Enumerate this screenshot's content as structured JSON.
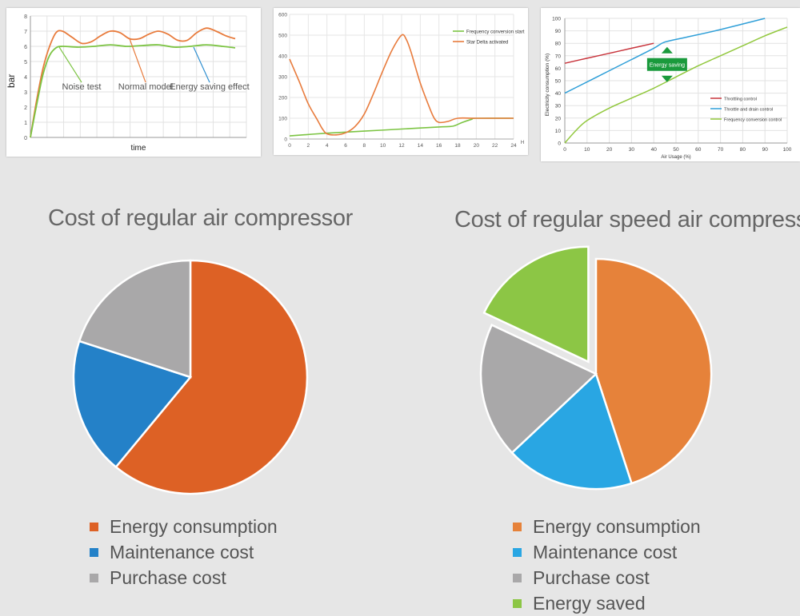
{
  "chart_data": [
    {
      "type": "line",
      "xlabel": "time",
      "ylabel": "bar",
      "ylim": [
        0,
        8
      ],
      "yticks": [
        "0",
        "1",
        "2",
        "3",
        "4",
        "5",
        "6",
        "7",
        "8"
      ],
      "grid": true,
      "series": [
        {
          "key": "orange",
          "color": "#e87b3c",
          "values": [
            [
              0,
              0
            ],
            [
              0.4,
              2.5
            ],
            [
              0.8,
              4.6
            ],
            [
              1.2,
              6.0
            ],
            [
              1.6,
              6.9
            ],
            [
              2.0,
              7.0
            ],
            [
              2.6,
              6.6
            ],
            [
              3.2,
              6.2
            ],
            [
              3.8,
              6.3
            ],
            [
              4.4,
              6.7
            ],
            [
              5.0,
              7.0
            ],
            [
              5.6,
              6.9
            ],
            [
              6.2,
              6.5
            ],
            [
              6.8,
              6.5
            ],
            [
              7.4,
              6.8
            ],
            [
              8.0,
              7.0
            ],
            [
              8.6,
              6.8
            ],
            [
              9.2,
              6.4
            ],
            [
              9.8,
              6.4
            ],
            [
              10.4,
              6.9
            ],
            [
              11.0,
              7.2
            ],
            [
              11.6,
              7.0
            ],
            [
              12.2,
              6.7
            ],
            [
              12.8,
              6.5
            ]
          ]
        },
        {
          "key": "green",
          "color": "#7cc443",
          "values": [
            [
              0,
              0
            ],
            [
              0.4,
              2.2
            ],
            [
              0.8,
              4.2
            ],
            [
              1.2,
              5.4
            ],
            [
              1.6,
              5.9
            ],
            [
              2.0,
              6.0
            ],
            [
              3.0,
              5.95
            ],
            [
              4.0,
              6.0
            ],
            [
              5.0,
              6.1
            ],
            [
              6.0,
              6.0
            ],
            [
              7.0,
              6.05
            ],
            [
              8.0,
              6.1
            ],
            [
              9.0,
              5.95
            ],
            [
              10.0,
              6.0
            ],
            [
              11.0,
              6.1
            ],
            [
              12.0,
              6.0
            ],
            [
              12.8,
              5.9
            ]
          ]
        }
      ],
      "annotations": [
        {
          "text": "Noise test",
          "series": "green",
          "at": [
            1.8,
            5.95
          ],
          "label_at": [
            3.2,
            3.1
          ],
          "color": "#7cc443"
        },
        {
          "text": "Normal model",
          "series": "orange",
          "at": [
            6.2,
            6.5
          ],
          "label_at": [
            7.2,
            3.1
          ],
          "color": "#e87b3c"
        },
        {
          "text": "Energy saving effect",
          "series": "green",
          "at": [
            10.2,
            5.95
          ],
          "label_at": [
            11.2,
            3.1
          ],
          "color": "#2f8fd0"
        }
      ],
      "xlim": [
        0,
        13.5
      ]
    },
    {
      "type": "line",
      "xlim": [
        0,
        24
      ],
      "ylim": [
        0,
        600
      ],
      "xticks": [
        0,
        2,
        4,
        6,
        8,
        10,
        12,
        14,
        16,
        18,
        20,
        22,
        24
      ],
      "yticks": [
        0,
        100,
        200,
        300,
        400,
        500,
        600
      ],
      "x_unit_label": "H",
      "grid": true,
      "legend": "top-right",
      "series": [
        {
          "name": "Frequency conversion start",
          "color": "#7cc443",
          "values": [
            [
              0,
              15
            ],
            [
              4,
              28
            ],
            [
              8,
              38
            ],
            [
              12,
              48
            ],
            [
              16,
              58
            ],
            [
              17.5,
              62
            ],
            [
              18.5,
              80
            ],
            [
              19.5,
              95
            ],
            [
              20,
              100
            ],
            [
              24,
              100
            ]
          ]
        },
        {
          "name": "Star Delta activated",
          "color": "#e87b3c",
          "values": [
            [
              0,
              385
            ],
            [
              1,
              280
            ],
            [
              2,
              170
            ],
            [
              3,
              90
            ],
            [
              3.5,
              50
            ],
            [
              4,
              25
            ],
            [
              5,
              20
            ],
            [
              6,
              30
            ],
            [
              7,
              60
            ],
            [
              8,
              120
            ],
            [
              9,
              220
            ],
            [
              10,
              330
            ],
            [
              11,
              430
            ],
            [
              12,
              500
            ],
            [
              12.5,
              480
            ],
            [
              13,
              420
            ],
            [
              14,
              270
            ],
            [
              15,
              150
            ],
            [
              15.5,
              100
            ],
            [
              16,
              80
            ],
            [
              17,
              85
            ],
            [
              18,
              100
            ],
            [
              20,
              100
            ],
            [
              24,
              100
            ]
          ]
        }
      ]
    },
    {
      "type": "line",
      "xlabel": "Air Usage (%)",
      "ylabel": "Electricity consumption (%)",
      "xlim": [
        0,
        100
      ],
      "ylim": [
        0,
        100
      ],
      "xticks": [
        0,
        10,
        20,
        30,
        40,
        50,
        60,
        70,
        80,
        90,
        100
      ],
      "yticks": [
        0,
        10,
        20,
        30,
        40,
        50,
        60,
        70,
        80,
        90,
        100
      ],
      "grid": true,
      "legend": "bottom-right",
      "series": [
        {
          "name": "Throttling control",
          "color": "#c8343c",
          "values": [
            [
              0,
              64
            ],
            [
              10,
              68
            ],
            [
              20,
              72
            ],
            [
              30,
              76
            ],
            [
              40,
              80
            ]
          ]
        },
        {
          "name": "Throttle and drain control",
          "color": "#2f9fd8",
          "values": [
            [
              0,
              40
            ],
            [
              10,
              49
            ],
            [
              20,
              58
            ],
            [
              30,
              67
            ],
            [
              40,
              76
            ],
            [
              45,
              81
            ],
            [
              55,
              85
            ],
            [
              70,
              91
            ],
            [
              90,
              100
            ]
          ]
        },
        {
          "name": "Frequency conversion control",
          "color": "#92c83e",
          "values": [
            [
              0,
              0
            ],
            [
              5,
              10
            ],
            [
              10,
              18
            ],
            [
              20,
              28
            ],
            [
              30,
              36
            ],
            [
              40,
              44
            ],
            [
              50,
              53
            ],
            [
              60,
              62
            ],
            [
              70,
              70
            ],
            [
              80,
              78
            ],
            [
              90,
              86
            ],
            [
              100,
              93
            ]
          ]
        }
      ],
      "annotations": [
        {
          "text": "Energy saving",
          "at": [
            46,
            63
          ],
          "color": "#1a9a3c"
        }
      ]
    },
    {
      "type": "pie",
      "title": "Cost of regular air compressor",
      "categories": [
        "Energy consumption",
        "Maintenance cost",
        "Purchase cost"
      ],
      "values": [
        61,
        19,
        20
      ],
      "colors": [
        "#dd6125",
        "#2481c8",
        "#a9a8a9"
      ],
      "explode": [
        0,
        0,
        0
      ]
    },
    {
      "type": "pie",
      "title": "Cost of regular speed air compressor",
      "categories": [
        "Energy consumption",
        "Maintenance cost",
        "Purchase cost",
        "Energy saved"
      ],
      "values": [
        45,
        18,
        19,
        18
      ],
      "colors": [
        "#e6823a",
        "#29a6e3",
        "#a9a8a9",
        "#8cc645"
      ],
      "explode": [
        0,
        0,
        0,
        0.25
      ]
    }
  ]
}
